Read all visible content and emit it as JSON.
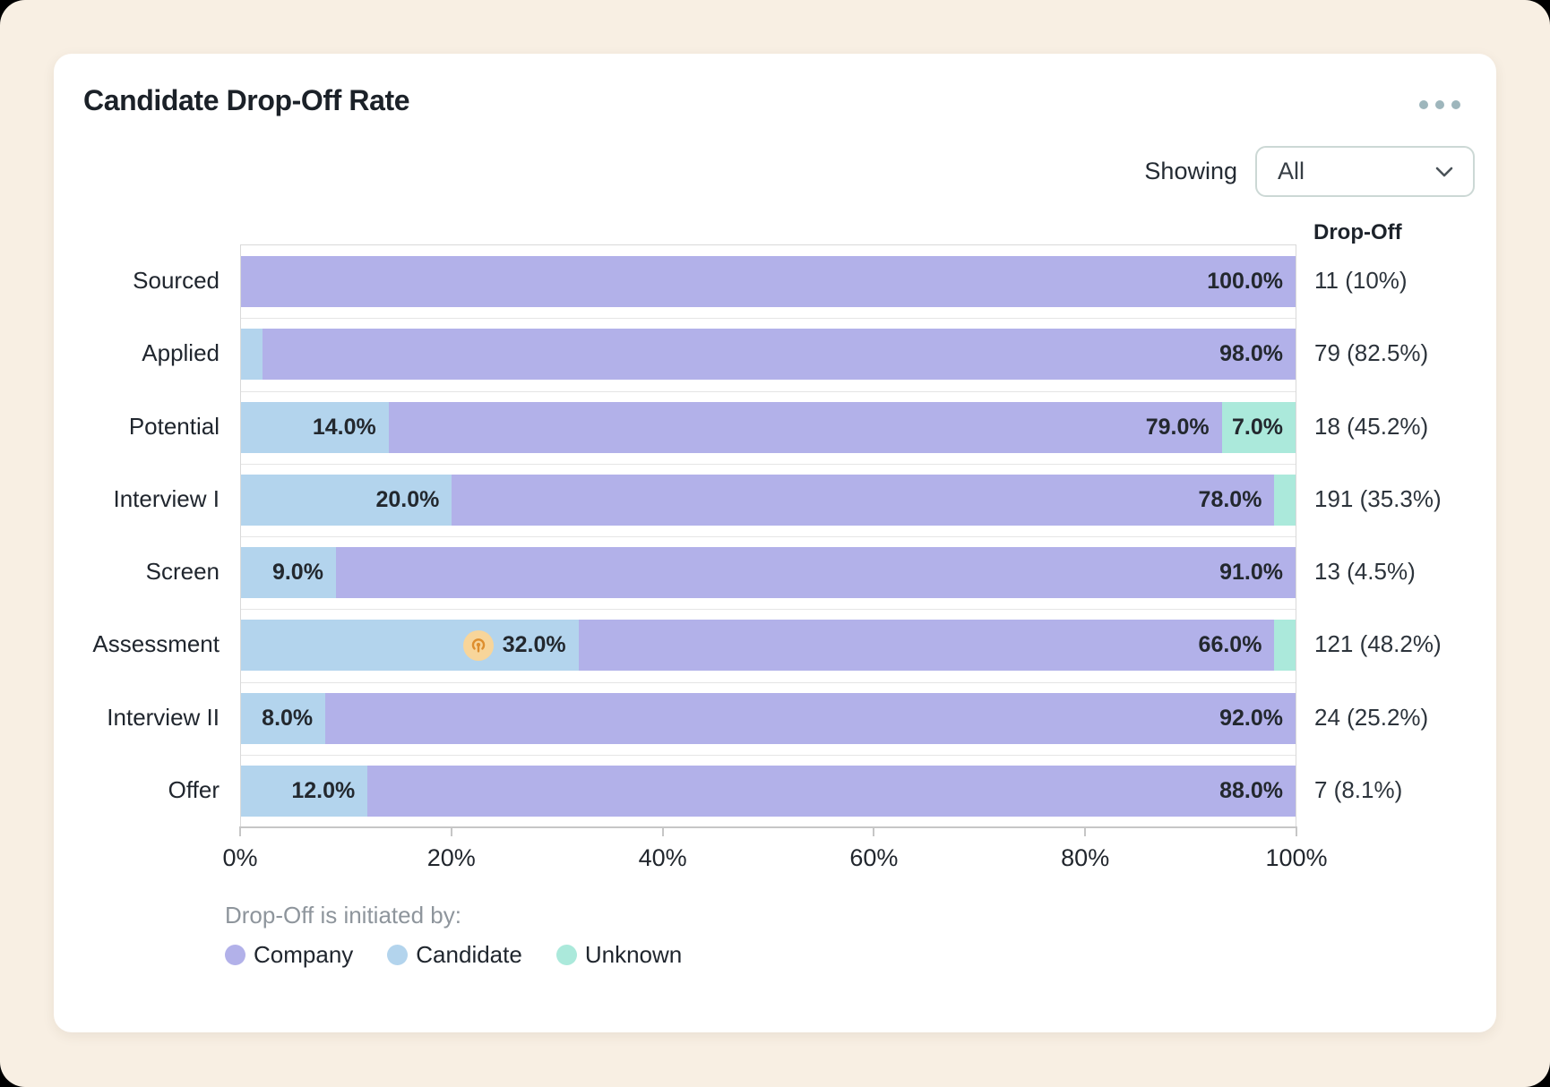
{
  "page": {
    "background": "#f8efe3"
  },
  "header": {
    "title": "Candidate Drop-Off Rate",
    "menu_icon": "ellipsis-icon"
  },
  "filter": {
    "label": "Showing",
    "value": "All",
    "chevron_icon": "chevron-down-icon"
  },
  "colors": {
    "company": "#b2b1e9",
    "candidate": "#b3d4ed",
    "unknown": "#abe9db",
    "marker_bg": "#f8d59a",
    "marker_fg": "#de8e2e"
  },
  "chart_data": {
    "type": "bar",
    "orientation": "horizontal",
    "stacked": true,
    "xlim": [
      0,
      100
    ],
    "x_ticks": [
      "0%",
      "20%",
      "40%",
      "60%",
      "80%",
      "100%"
    ],
    "grid": "horizontal-band-separators",
    "label_min_pct": 5,
    "categories": [
      "Sourced",
      "Applied",
      "Potential",
      "Interview I",
      "Screen",
      "Assessment",
      "Interview II",
      "Offer"
    ],
    "series": [
      {
        "name": "Candidate",
        "color": "#b3d4ed",
        "values": [
          0,
          2,
          14,
          20,
          9,
          32,
          8,
          12
        ]
      },
      {
        "name": "Company",
        "color": "#b2b1e9",
        "values": [
          100,
          98,
          79,
          78,
          91,
          66,
          92,
          88
        ]
      },
      {
        "name": "Unknown",
        "color": "#abe9db",
        "values": [
          0,
          0,
          7,
          2,
          0,
          2,
          0,
          0
        ]
      }
    ],
    "dropoff_column": {
      "header": "Drop-Off",
      "values": [
        "11 (10%)",
        "79 (82.5%)",
        "18 (45.2%)",
        "191 (35.3%)",
        "13 (4.5%)",
        "121 (48.2%)",
        "24 (25.2%)",
        "7 (8.1%)"
      ]
    },
    "marker": {
      "category": "Assessment",
      "series": "Candidate",
      "icon": "tap-target-icon"
    },
    "legend_title": "Drop-Off is initiated by:",
    "legend": [
      {
        "label": "Company",
        "color": "#b2b1e9"
      },
      {
        "label": "Candidate",
        "color": "#b3d4ed"
      },
      {
        "label": "Unknown",
        "color": "#abe9db"
      }
    ]
  }
}
